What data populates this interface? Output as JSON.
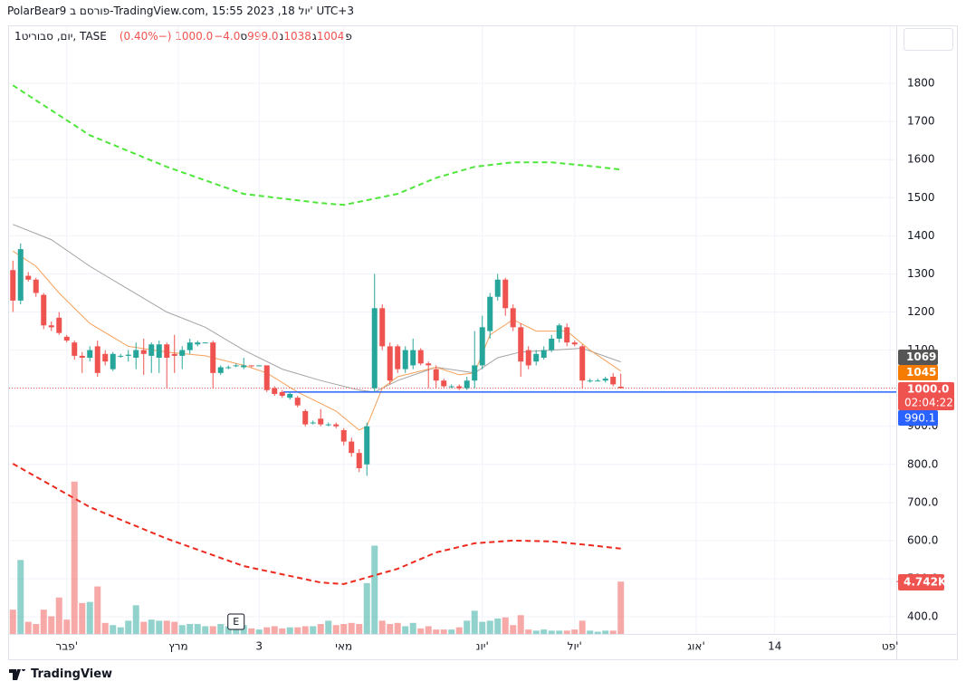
{
  "header": {
    "title": "PolarBear9 פורסם ב-TradingView.com, 15:55 2023 ,18 יול' UTC+3",
    "brand": "TradingView"
  },
  "chart_data": {
    "type": "candlestick",
    "legend": {
      "symbol": "1יום, סבוריט, TASE",
      "fields": [
        {
          "key": "פ",
          "value": "1004"
        },
        {
          "key": "ג",
          "value": "1038"
        },
        {
          "key": "נ",
          "value": "999.0"
        },
        {
          "key": "ס",
          "value": "1000.0"
        }
      ],
      "change": "−4.0 (−0.40%)"
    },
    "xlim": [
      -0.5,
      114.8
    ],
    "xticks": [
      {
        "value": 7,
        "label": "פבר'"
      },
      {
        "value": 21.5,
        "label": "מרץ"
      },
      {
        "value": 32,
        "label": "3"
      },
      {
        "value": 43,
        "label": "מאי"
      },
      {
        "value": 61,
        "label": "יונ'"
      },
      {
        "value": 73,
        "label": "יול'"
      },
      {
        "value": 88.8,
        "label": "אוג'"
      },
      {
        "value": 99,
        "label": "14"
      },
      {
        "value": 114,
        "label": "פט'"
      }
    ],
    "ylim": [
      355,
      1950
    ],
    "yticks": [
      {
        "value": 400,
        "label": "400.0"
      },
      {
        "value": 500,
        "label": "500.0"
      },
      {
        "value": 600,
        "label": "600.0"
      },
      {
        "value": 700,
        "label": "700.0"
      },
      {
        "value": 800,
        "label": "800.0"
      },
      {
        "value": 900,
        "label": "900.0"
      },
      1000,
      1100,
      1200,
      1300,
      1400,
      1500,
      1600,
      1700,
      1800
    ],
    "grid": true,
    "up_color": "#26a69a",
    "down_color": "#ef5350",
    "open": [
      1310,
      1230,
      1295,
      1285,
      1245,
      1165,
      1185,
      1135,
      1120,
      1085,
      1080,
      1110,
      1090,
      1050,
      1085,
      1085,
      1080,
      1100,
      1085,
      1080,
      1115,
      1090,
      1085,
      1100,
      1115,
      1120,
      1120,
      1040,
      1055,
      1060,
      1055,
      1060,
      1060,
      1060,
      1000,
      990,
      975,
      975,
      940,
      910,
      920,
      905,
      905,
      890,
      860,
      830,
      800,
      1000,
      1210,
      1110,
      1110,
      1050,
      1060,
      1100,
      1065,
      1050,
      1020,
      1005,
      1005,
      1000,
      1020,
      1060,
      1150,
      1240,
      1285,
      1210,
      1160,
      1100,
      1070,
      1080,
      1100,
      1130,
      1160,
      1120,
      1110,
      1020,
      1020,
      1020,
      1030,
      1004
    ],
    "high": [
      1335,
      1380,
      1305,
      1290,
      1250,
      1175,
      1200,
      1140,
      1125,
      1095,
      1110,
      1125,
      1100,
      1095,
      1090,
      1100,
      1120,
      1130,
      1120,
      1125,
      1120,
      1140,
      1110,
      1130,
      1125,
      1120,
      1125,
      1060,
      1060,
      1065,
      1080,
      1060,
      1060,
      1060,
      1005,
      995,
      990,
      980,
      945,
      915,
      945,
      910,
      910,
      895,
      870,
      840,
      910,
      1300,
      1220,
      1120,
      1115,
      1110,
      1130,
      1105,
      1070,
      1060,
      1025,
      1010,
      1010,
      1030,
      1150,
      1190,
      1250,
      1300,
      1290,
      1220,
      1170,
      1110,
      1100,
      1110,
      1140,
      1170,
      1170,
      1125,
      1115,
      1025,
      1025,
      1030,
      1040,
      1038
    ],
    "low": [
      1200,
      1220,
      1280,
      1240,
      1155,
      1150,
      1140,
      1120,
      1075,
      1040,
      1070,
      1030,
      1060,
      1045,
      1080,
      1070,
      1050,
      1035,
      1040,
      1040,
      1000,
      1040,
      1050,
      1090,
      1110,
      1118,
      1000,
      1035,
      1050,
      1055,
      1050,
      1055,
      1058,
      990,
      980,
      975,
      970,
      950,
      900,
      905,
      900,
      900,
      895,
      850,
      820,
      780,
      770,
      990,
      1100,
      1010,
      1040,
      1040,
      1050,
      1060,
      1000,
      1000,
      1000,
      1000,
      995,
      995,
      1000,
      1050,
      1130,
      1230,
      1190,
      1150,
      1030,
      1050,
      1060,
      1075,
      1095,
      1120,
      1110,
      1110,
      1000,
      1015,
      1018,
      1015,
      1005,
      999
    ],
    "close": [
      1230,
      1365,
      1285,
      1250,
      1165,
      1160,
      1145,
      1125,
      1085,
      1080,
      1100,
      1040,
      1070,
      1090,
      1085,
      1088,
      1100,
      1090,
      1115,
      1115,
      1080,
      1085,
      1100,
      1120,
      1120,
      1120,
      1040,
      1055,
      1055,
      1060,
      1060,
      1058,
      1060,
      995,
      985,
      980,
      985,
      955,
      905,
      910,
      905,
      905,
      900,
      860,
      830,
      790,
      900,
      1210,
      1110,
      1020,
      1050,
      1100,
      1100,
      1065,
      1060,
      1020,
      1005,
      1005,
      1000,
      1020,
      1060,
      1160,
      1240,
      1285,
      1210,
      1160,
      1070,
      1060,
      1090,
      1100,
      1130,
      1165,
      1120,
      1115,
      1020,
      1020,
      1020,
      1025,
      1010,
      1000
    ],
    "volume": {
      "ylim": [
        0,
        21000
      ],
      "last_label": "4.742K",
      "values": [
        2200,
        6700,
        1100,
        900,
        2200,
        1600,
        3300,
        1300,
        13800,
        2800,
        2900,
        4300,
        1000,
        800,
        600,
        1200,
        2600,
        1100,
        1300,
        1200,
        1200,
        1100,
        800,
        900,
        900,
        700,
        700,
        900,
        700,
        600,
        800,
        500,
        400,
        600,
        700,
        500,
        600,
        600,
        700,
        700,
        900,
        1200,
        800,
        900,
        1000,
        900,
        4600,
        8000,
        1200,
        900,
        1000,
        700,
        1000,
        500,
        700,
        400,
        400,
        400,
        600,
        1200,
        2100,
        1100,
        1200,
        1400,
        1500,
        800,
        1700,
        400,
        300,
        400,
        300,
        300,
        300,
        400,
        1200,
        300,
        200,
        300,
        300,
        4742
      ]
    },
    "lines": [
      {
        "color": "#a3a3a3",
        "style": "solid",
        "x": [
          0,
          5,
          10,
          15,
          20,
          25,
          30,
          35,
          40,
          45,
          47,
          50,
          55,
          60,
          63,
          66,
          70,
          74,
          79
        ],
        "values": [
          1430,
          1390,
          1320,
          1260,
          1200,
          1160,
          1100,
          1050,
          1020,
          995,
          990,
          1020,
          1055,
          1040,
          1080,
          1095,
          1100,
          1105,
          1069
        ]
      },
      {
        "color": "#f7a15a",
        "style": "solid",
        "x": [
          0,
          3,
          6,
          10,
          15,
          20,
          25,
          30,
          33,
          37,
          42,
          45,
          46,
          48,
          50,
          55,
          58,
          60,
          62,
          65,
          68,
          72,
          75,
          79
        ],
        "values": [
          1360,
          1320,
          1250,
          1170,
          1110,
          1095,
          1085,
          1060,
          1040,
          990,
          940,
          890,
          900,
          1000,
          1030,
          1055,
          1035,
          1040,
          1140,
          1180,
          1150,
          1150,
          1100,
          1045
        ]
      },
      {
        "color": "#4ee63a",
        "style": "dashed",
        "x": [
          0,
          10,
          20,
          30,
          40,
          43,
          50,
          55,
          60,
          65,
          70,
          75,
          79
        ],
        "values": [
          1795,
          1664,
          1581,
          1510,
          1486,
          1481,
          1510,
          1552,
          1581,
          1593,
          1593,
          1583,
          1574
        ]
      },
      {
        "color": "#ec2a1e",
        "style": "dashed",
        "x": [
          0,
          10,
          20,
          30,
          40,
          43,
          50,
          55,
          60,
          65,
          70,
          75,
          79
        ],
        "values": [
          802,
          688,
          605,
          533,
          490,
          486,
          526,
          569,
          593,
          600,
          598,
          588,
          579
        ]
      }
    ],
    "price_line": {
      "value": 1000,
      "label": "1000.0",
      "countdown": "02:04:22",
      "color": "#ef5350"
    },
    "hline": {
      "value": 990.1,
      "label": "990.1",
      "color": "#2962ff"
    },
    "events": [
      {
        "x": 29,
        "label": "E"
      }
    ]
  }
}
